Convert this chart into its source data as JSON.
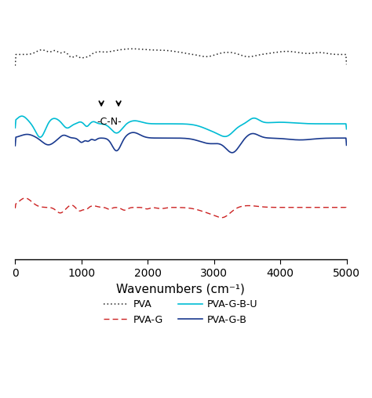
{
  "xlim": [
    0,
    5000
  ],
  "xlabel": "Wavenumbers (cm⁻¹)",
  "xlabel_fontsize": 11,
  "tick_fontsize": 10,
  "background_color": "#ffffff",
  "colors": {
    "pva": "#222222",
    "pvag": "#cc2222",
    "pvagbu": "#00bcd4",
    "pvagb": "#1a3a8f"
  },
  "legend_labels": {
    "pva": "PVA",
    "pvag": "PVA-G",
    "pvagbu": "PVA-G-B-U",
    "pvagb": "PVA-G-B"
  },
  "annotation_label": "-C-N-",
  "offsets": {
    "pva": 3.4,
    "pvagbu": 1.5,
    "pvagb": 0.9,
    "pvag": -1.0
  }
}
